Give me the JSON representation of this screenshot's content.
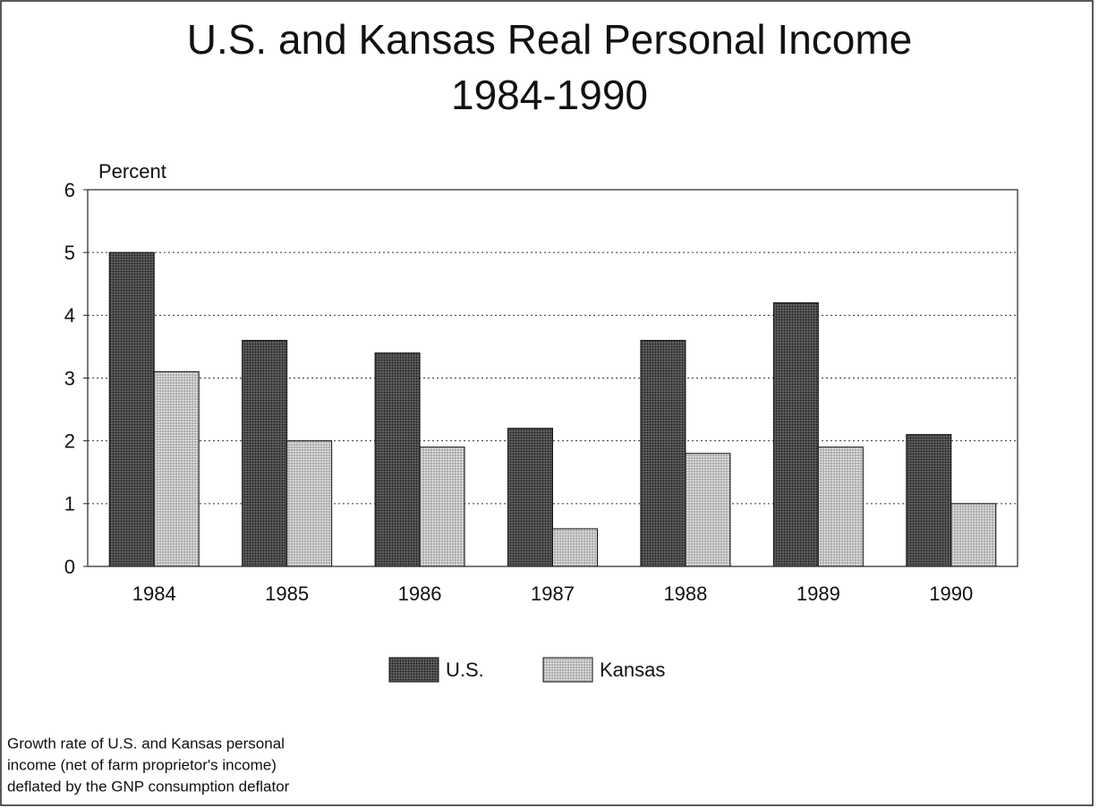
{
  "chart_data": {
    "type": "bar",
    "title": [
      "U.S. and Kansas Real Personal Income",
      "1984-1990"
    ],
    "y_label": "Percent",
    "categories": [
      "1984",
      "1985",
      "1986",
      "1987",
      "1988",
      "1989",
      "1990"
    ],
    "series": [
      {
        "name": "U.S.",
        "color": "#4a4a4a",
        "values": [
          5.0,
          3.6,
          3.4,
          2.2,
          3.6,
          4.2,
          2.1
        ]
      },
      {
        "name": "Kansas",
        "color": "#c4c4c4",
        "values": [
          3.1,
          2.0,
          1.9,
          0.6,
          1.8,
          1.9,
          1.0
        ]
      }
    ],
    "ylim": [
      0,
      6
    ],
    "yticks": [
      0,
      1,
      2,
      3,
      4,
      5,
      6
    ],
    "grid": true,
    "legend": "bottom",
    "note": [
      "Growth rate of U.S. and Kansas personal",
      "income (net of farm proprietor's income)",
      "deflated by the GNP consumption deflator"
    ]
  }
}
